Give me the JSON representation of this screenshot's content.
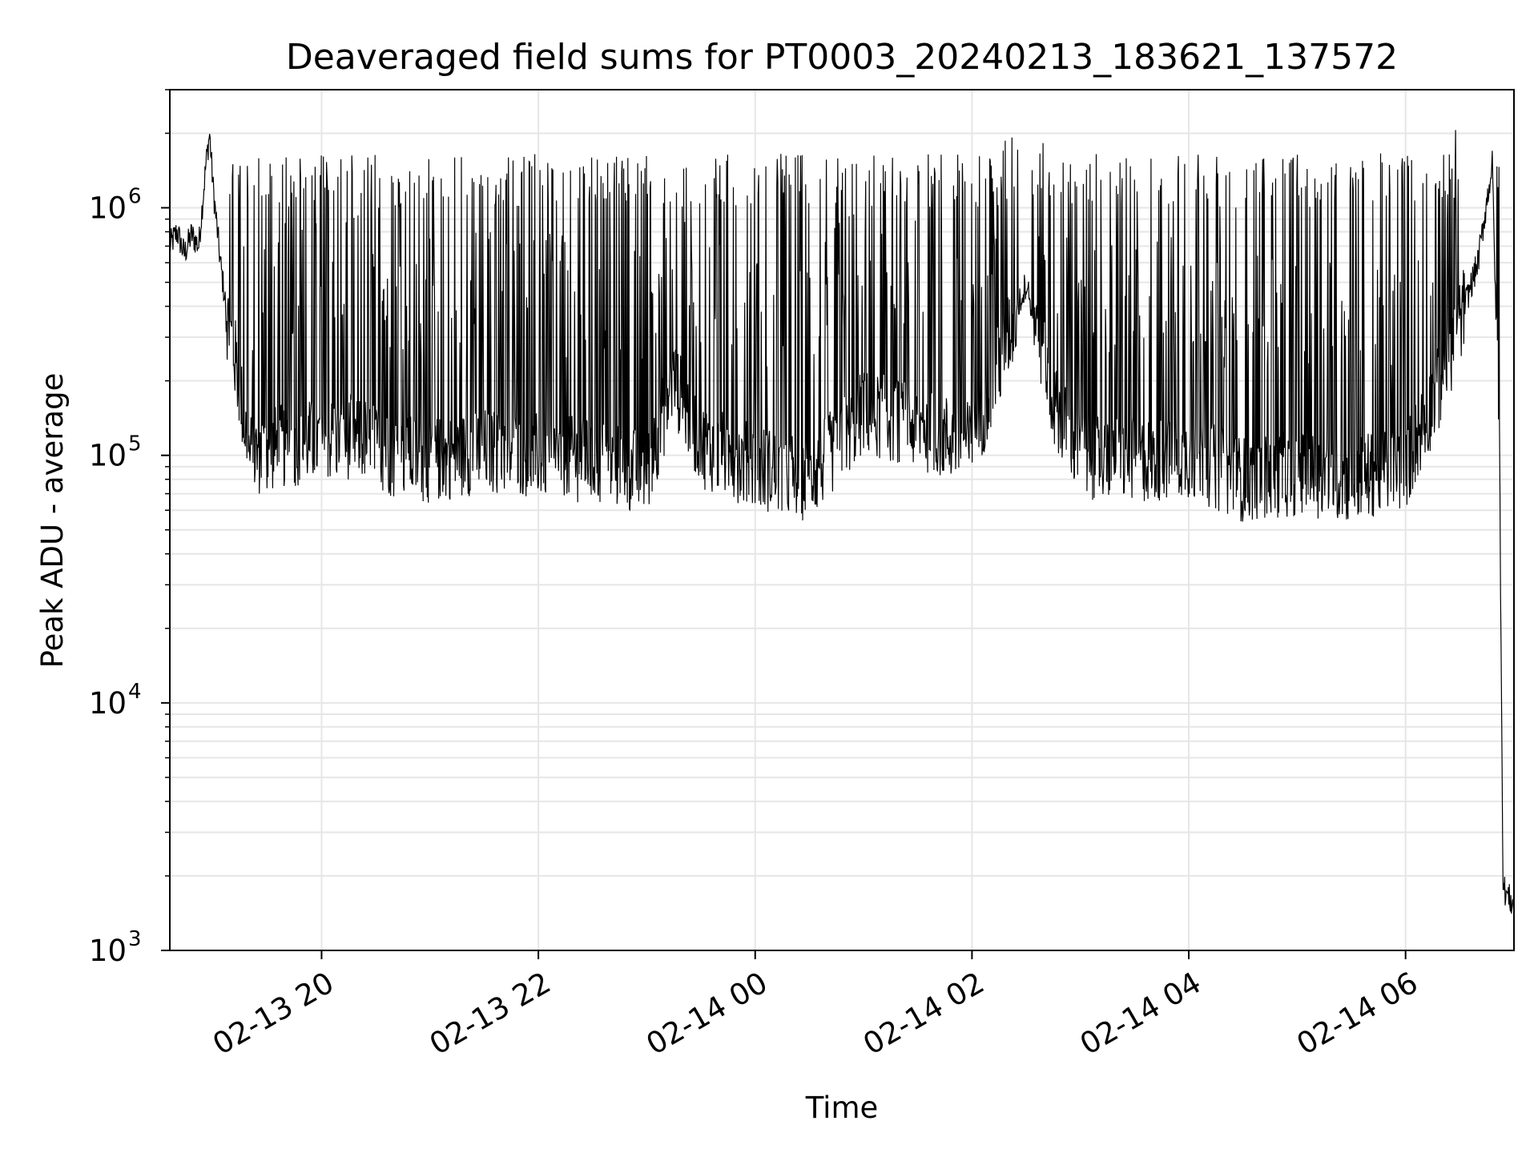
{
  "chart_data": {
    "type": "line",
    "title": "Deaveraged field sums for PT0003_20240213_183621_137572",
    "xlabel": "Time",
    "ylabel": "Peak ADU - average",
    "yscale": "log",
    "ylim": [
      1000,
      3000000
    ],
    "xlim": [
      "2024-02-13 18:36",
      "2024-02-14 07:00"
    ],
    "grid": true,
    "x_ticks": [
      {
        "label": "02-13 20",
        "value": "2024-02-13 20:00"
      },
      {
        "label": "02-13 22",
        "value": "2024-02-13 22:00"
      },
      {
        "label": "02-14 00",
        "value": "2024-02-14 00:00"
      },
      {
        "label": "02-14 02",
        "value": "2024-02-14 02:00"
      },
      {
        "label": "02-14 04",
        "value": "2024-02-14 04:00"
      },
      {
        "label": "02-14 06",
        "value": "2024-02-14 06:00"
      }
    ],
    "y_ticks": [
      {
        "base": "10",
        "exp": "3",
        "value": 1000
      },
      {
        "base": "10",
        "exp": "4",
        "value": 10000
      },
      {
        "base": "10",
        "exp": "5",
        "value": 100000
      },
      {
        "base": "10",
        "exp": "6",
        "value": 1000000
      }
    ],
    "line_color": "#000000",
    "grid_color": "#e6e6e6",
    "series": [
      {
        "points": [
          [
            "2024-02-13 18:36",
            700000
          ],
          [
            "2024-02-13 18:40",
            800000
          ],
          [
            "2024-02-13 18:44",
            650000
          ],
          [
            "2024-02-13 18:48",
            780000
          ],
          [
            "2024-02-13 18:52",
            700000
          ],
          [
            "2024-02-13 18:56",
            1500000
          ],
          [
            "2024-02-13 18:58",
            2000000
          ],
          [
            "2024-02-13 19:00",
            1200000
          ],
          [
            "2024-02-13 19:04",
            600000
          ],
          [
            "2024-02-13 19:08",
            350000
          ],
          [
            "2024-02-13 19:12",
            250000
          ],
          [
            "2024-02-13 19:20",
            100000
          ],
          [
            "2024-02-13 19:40",
            110000
          ],
          [
            "2024-02-13 20:00",
            115000
          ],
          [
            "2024-02-13 20:20",
            120000
          ],
          [
            "2024-02-13 20:40",
            100000
          ],
          [
            "2024-02-13 21:00",
            95000
          ],
          [
            "2024-02-13 21:30",
            105000
          ],
          [
            "2024-02-13 22:00",
            100000
          ],
          [
            "2024-02-13 22:30",
            95000
          ],
          [
            "2024-02-13 23:00",
            85000
          ],
          [
            "2024-02-13 23:15",
            200000
          ],
          [
            "2024-02-13 23:30",
            110000
          ],
          [
            "2024-02-14 00:00",
            90000
          ],
          [
            "2024-02-14 00:30",
            80000
          ],
          [
            "2024-02-14 01:00",
            150000
          ],
          [
            "2024-02-14 01:30",
            130000
          ],
          [
            "2024-02-14 02:00",
            110000
          ],
          [
            "2024-02-14 02:20",
            300000
          ],
          [
            "2024-02-14 02:30",
            500000
          ],
          [
            "2024-02-14 02:45",
            160000
          ],
          [
            "2024-02-14 03:00",
            100000
          ],
          [
            "2024-02-14 03:30",
            95000
          ],
          [
            "2024-02-14 04:00",
            100000
          ],
          [
            "2024-02-14 04:30",
            80000
          ],
          [
            "2024-02-14 05:00",
            85000
          ],
          [
            "2024-02-14 05:30",
            80000
          ],
          [
            "2024-02-14 06:00",
            90000
          ],
          [
            "2024-02-14 06:20",
            200000
          ],
          [
            "2024-02-14 06:40",
            600000
          ],
          [
            "2024-02-14 06:48",
            1500000
          ],
          [
            "2024-02-14 06:52",
            100000
          ],
          [
            "2024-02-14 06:54",
            1800
          ],
          [
            "2024-02-14 07:00",
            1500
          ]
        ]
      }
    ]
  }
}
